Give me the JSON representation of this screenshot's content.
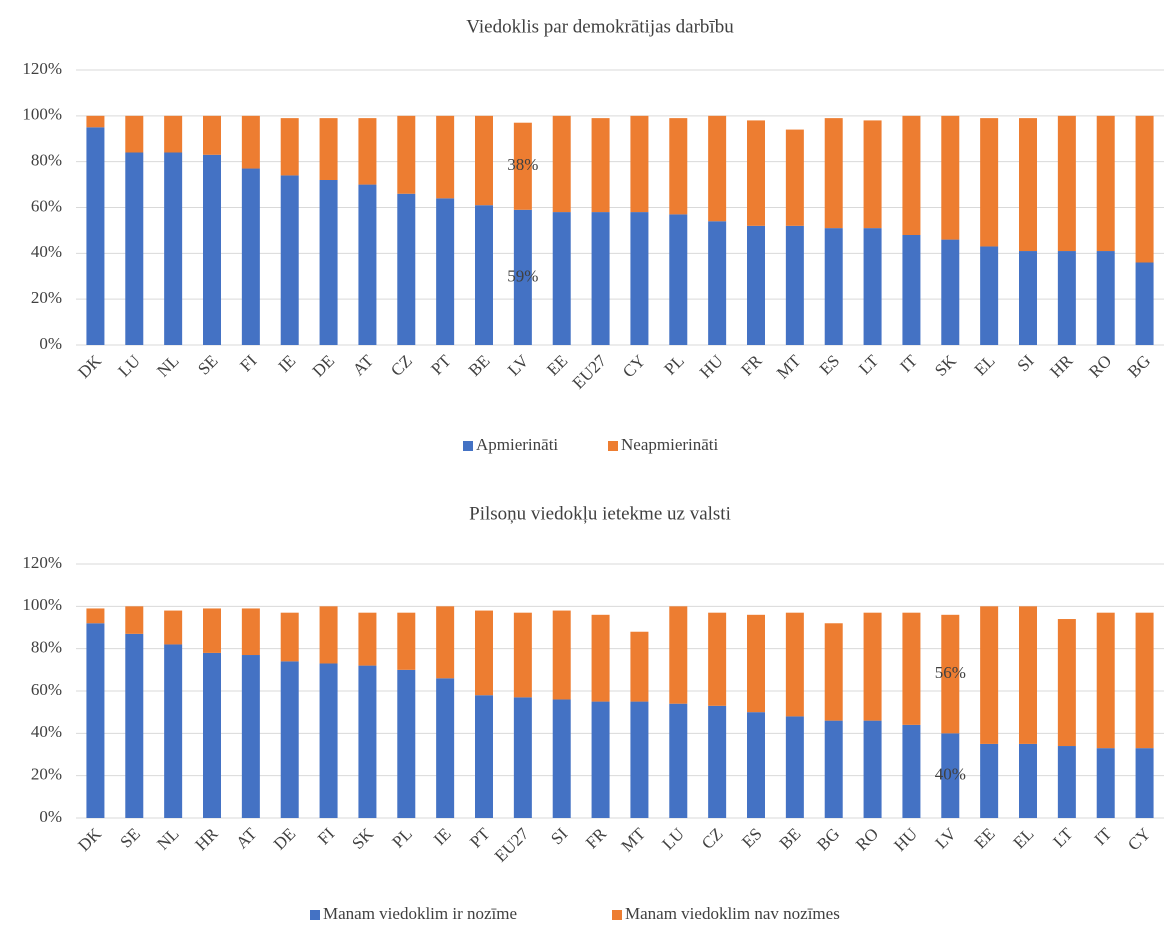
{
  "chart_data": [
    {
      "type": "bar",
      "stacked": true,
      "title": "Viedoklis par demokrātijas darbību",
      "categories": [
        "DK",
        "LU",
        "NL",
        "SE",
        "FI",
        "IE",
        "DE",
        "AT",
        "CZ",
        "PT",
        "BE",
        "LV",
        "EE",
        "EU27",
        "CY",
        "PL",
        "HU",
        "FR",
        "MT",
        "ES",
        "LT",
        "IT",
        "SK",
        "EL",
        "SI",
        "HR",
        "RO",
        "BG"
      ],
      "series": [
        {
          "name": "Apmierināti",
          "color": "#4472c4",
          "values": [
            95,
            84,
            84,
            83,
            77,
            74,
            72,
            70,
            66,
            64,
            61,
            59,
            58,
            58,
            58,
            57,
            54,
            52,
            52,
            51,
            51,
            48,
            46,
            43,
            41,
            41,
            41,
            36
          ],
          "value_labels": [
            null,
            null,
            null,
            null,
            null,
            null,
            null,
            null,
            null,
            null,
            null,
            "59%",
            null,
            null,
            null,
            null,
            null,
            null,
            null,
            null,
            null,
            null,
            null,
            null,
            null,
            null,
            null,
            null
          ]
        },
        {
          "name": "Neapmierināti",
          "color": "#ed7d31",
          "values": [
            5,
            16,
            16,
            17,
            23,
            25,
            27,
            29,
            34,
            36,
            39,
            38,
            42,
            41,
            42,
            42,
            46,
            46,
            42,
            48,
            47,
            52,
            54,
            56,
            58,
            59,
            59,
            64
          ],
          "value_labels": [
            null,
            null,
            null,
            null,
            null,
            null,
            null,
            null,
            null,
            null,
            null,
            "38%",
            null,
            null,
            null,
            null,
            null,
            null,
            null,
            null,
            null,
            null,
            null,
            null,
            null,
            null,
            null,
            null
          ]
        }
      ],
      "ylim": [
        0,
        120
      ],
      "yticks": [
        {
          "value": 0,
          "label": "0%"
        },
        {
          "value": 20,
          "label": "20%"
        },
        {
          "value": 40,
          "label": "40%"
        },
        {
          "value": 60,
          "label": "60%"
        },
        {
          "value": 80,
          "label": "80%"
        },
        {
          "value": 100,
          "label": "100%"
        },
        {
          "value": 120,
          "label": "120%"
        }
      ],
      "grid": true,
      "legend": "bottom"
    },
    {
      "type": "bar",
      "stacked": true,
      "title": "Pilsoņu viedokļu ietekme uz valsti",
      "categories": [
        "DK",
        "SE",
        "NL",
        "HR",
        "AT",
        "DE",
        "FI",
        "SK",
        "PL",
        "IE",
        "PT",
        "EU27",
        "SI",
        "FR",
        "MT",
        "LU",
        "CZ",
        "ES",
        "BE",
        "BG",
        "RO",
        "HU",
        "LV",
        "EE",
        "EL",
        "LT",
        "IT",
        "CY"
      ],
      "series": [
        {
          "name": "Manam viedoklim ir nozīme",
          "color": "#4472c4",
          "values": [
            92,
            87,
            82,
            78,
            77,
            74,
            73,
            72,
            70,
            66,
            58,
            57,
            56,
            55,
            55,
            54,
            53,
            50,
            48,
            46,
            46,
            44,
            40,
            35,
            35,
            34,
            33,
            33
          ],
          "value_labels": [
            null,
            null,
            null,
            null,
            null,
            null,
            null,
            null,
            null,
            null,
            null,
            null,
            null,
            null,
            null,
            null,
            null,
            null,
            null,
            null,
            null,
            null,
            "40%",
            null,
            null,
            null,
            null,
            null
          ]
        },
        {
          "name": "Manam viedoklim nav nozīmes",
          "color": "#ed7d31",
          "values": [
            7,
            13,
            16,
            21,
            22,
            23,
            27,
            25,
            27,
            34,
            40,
            40,
            42,
            41,
            33,
            46,
            44,
            46,
            49,
            46,
            51,
            53,
            56,
            65,
            65,
            60,
            64,
            64
          ],
          "value_labels": [
            null,
            null,
            null,
            null,
            null,
            null,
            null,
            null,
            null,
            null,
            null,
            null,
            null,
            null,
            null,
            null,
            null,
            null,
            null,
            null,
            null,
            null,
            "56%",
            null,
            null,
            null,
            null,
            null
          ]
        }
      ],
      "ylim": [
        0,
        120
      ],
      "yticks": [
        {
          "value": 0,
          "label": "0%"
        },
        {
          "value": 20,
          "label": "20%"
        },
        {
          "value": 40,
          "label": "40%"
        },
        {
          "value": 60,
          "label": "60%"
        },
        {
          "value": 80,
          "label": "80%"
        },
        {
          "value": 100,
          "label": "100%"
        },
        {
          "value": 120,
          "label": "120%"
        }
      ],
      "grid": true,
      "legend": "bottom"
    }
  ]
}
